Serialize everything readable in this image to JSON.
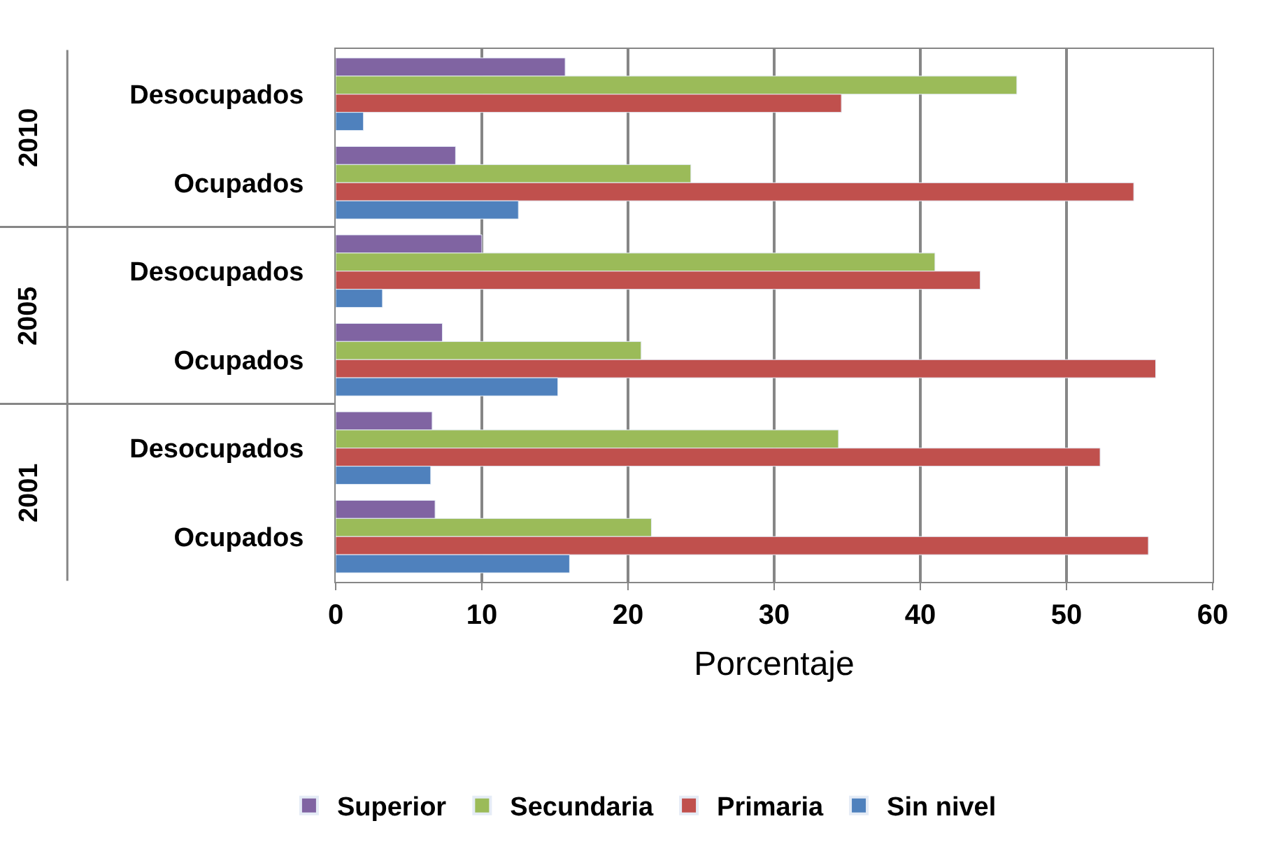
{
  "chart_data": {
    "type": "bar",
    "orientation": "horizontal",
    "xlabel": "Porcentaje",
    "categories": [
      "Desocupados",
      "Ocupados",
      "Desocupados",
      "Ocupados",
      "Desocupados",
      "Ocupados"
    ],
    "annotations": [
      "2010",
      "2005",
      "2001"
    ],
    "series": [
      {
        "name": "Superior",
        "color": "#8064a2",
        "values": [
          15.7,
          8.2,
          10.0,
          7.3,
          6.6,
          6.8
        ]
      },
      {
        "name": "Secundaria",
        "color": "#9bbb59",
        "values": [
          46.6,
          24.3,
          41.0,
          20.9,
          34.4,
          21.6
        ]
      },
      {
        "name": "Primaria",
        "color": "#c0504d",
        "values": [
          34.6,
          54.6,
          44.1,
          56.1,
          52.3,
          55.6
        ]
      },
      {
        "name": "Sin nivel",
        "color": "#4f81bd",
        "values": [
          1.9,
          12.5,
          3.2,
          15.2,
          6.5,
          16.0
        ]
      }
    ],
    "xlim": [
      0,
      60
    ],
    "xticks": [
      0,
      10,
      20,
      30,
      40,
      50,
      60
    ],
    "grid": "x",
    "legend": "bottom"
  }
}
